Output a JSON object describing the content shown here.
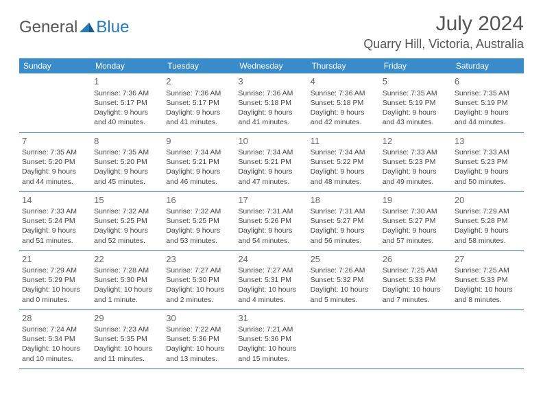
{
  "logo": {
    "text1": "General",
    "text2": "Blue"
  },
  "header": {
    "month_title": "July 2024",
    "location": "Quarry Hill, Victoria, Australia"
  },
  "colors": {
    "header_bg": "#3a8bc9",
    "header_text": "#ffffff",
    "divider": "#3a6a90",
    "body_text": "#444444",
    "logo_gray": "#555555",
    "logo_blue": "#2a7ab8"
  },
  "day_names": [
    "Sunday",
    "Monday",
    "Tuesday",
    "Wednesday",
    "Thursday",
    "Friday",
    "Saturday"
  ],
  "weeks": [
    [
      {
        "n": "",
        "sr": "",
        "ss": "",
        "dl": ""
      },
      {
        "n": "1",
        "sr": "Sunrise: 7:36 AM",
        "ss": "Sunset: 5:17 PM",
        "dl": "Daylight: 9 hours and 40 minutes."
      },
      {
        "n": "2",
        "sr": "Sunrise: 7:36 AM",
        "ss": "Sunset: 5:17 PM",
        "dl": "Daylight: 9 hours and 41 minutes."
      },
      {
        "n": "3",
        "sr": "Sunrise: 7:36 AM",
        "ss": "Sunset: 5:18 PM",
        "dl": "Daylight: 9 hours and 41 minutes."
      },
      {
        "n": "4",
        "sr": "Sunrise: 7:36 AM",
        "ss": "Sunset: 5:18 PM",
        "dl": "Daylight: 9 hours and 42 minutes."
      },
      {
        "n": "5",
        "sr": "Sunrise: 7:35 AM",
        "ss": "Sunset: 5:19 PM",
        "dl": "Daylight: 9 hours and 43 minutes."
      },
      {
        "n": "6",
        "sr": "Sunrise: 7:35 AM",
        "ss": "Sunset: 5:19 PM",
        "dl": "Daylight: 9 hours and 44 minutes."
      }
    ],
    [
      {
        "n": "7",
        "sr": "Sunrise: 7:35 AM",
        "ss": "Sunset: 5:20 PM",
        "dl": "Daylight: 9 hours and 44 minutes."
      },
      {
        "n": "8",
        "sr": "Sunrise: 7:35 AM",
        "ss": "Sunset: 5:20 PM",
        "dl": "Daylight: 9 hours and 45 minutes."
      },
      {
        "n": "9",
        "sr": "Sunrise: 7:34 AM",
        "ss": "Sunset: 5:21 PM",
        "dl": "Daylight: 9 hours and 46 minutes."
      },
      {
        "n": "10",
        "sr": "Sunrise: 7:34 AM",
        "ss": "Sunset: 5:21 PM",
        "dl": "Daylight: 9 hours and 47 minutes."
      },
      {
        "n": "11",
        "sr": "Sunrise: 7:34 AM",
        "ss": "Sunset: 5:22 PM",
        "dl": "Daylight: 9 hours and 48 minutes."
      },
      {
        "n": "12",
        "sr": "Sunrise: 7:33 AM",
        "ss": "Sunset: 5:23 PM",
        "dl": "Daylight: 9 hours and 49 minutes."
      },
      {
        "n": "13",
        "sr": "Sunrise: 7:33 AM",
        "ss": "Sunset: 5:23 PM",
        "dl": "Daylight: 9 hours and 50 minutes."
      }
    ],
    [
      {
        "n": "14",
        "sr": "Sunrise: 7:33 AM",
        "ss": "Sunset: 5:24 PM",
        "dl": "Daylight: 9 hours and 51 minutes."
      },
      {
        "n": "15",
        "sr": "Sunrise: 7:32 AM",
        "ss": "Sunset: 5:25 PM",
        "dl": "Daylight: 9 hours and 52 minutes."
      },
      {
        "n": "16",
        "sr": "Sunrise: 7:32 AM",
        "ss": "Sunset: 5:25 PM",
        "dl": "Daylight: 9 hours and 53 minutes."
      },
      {
        "n": "17",
        "sr": "Sunrise: 7:31 AM",
        "ss": "Sunset: 5:26 PM",
        "dl": "Daylight: 9 hours and 54 minutes."
      },
      {
        "n": "18",
        "sr": "Sunrise: 7:31 AM",
        "ss": "Sunset: 5:27 PM",
        "dl": "Daylight: 9 hours and 56 minutes."
      },
      {
        "n": "19",
        "sr": "Sunrise: 7:30 AM",
        "ss": "Sunset: 5:27 PM",
        "dl": "Daylight: 9 hours and 57 minutes."
      },
      {
        "n": "20",
        "sr": "Sunrise: 7:29 AM",
        "ss": "Sunset: 5:28 PM",
        "dl": "Daylight: 9 hours and 58 minutes."
      }
    ],
    [
      {
        "n": "21",
        "sr": "Sunrise: 7:29 AM",
        "ss": "Sunset: 5:29 PM",
        "dl": "Daylight: 10 hours and 0 minutes."
      },
      {
        "n": "22",
        "sr": "Sunrise: 7:28 AM",
        "ss": "Sunset: 5:30 PM",
        "dl": "Daylight: 10 hours and 1 minute."
      },
      {
        "n": "23",
        "sr": "Sunrise: 7:27 AM",
        "ss": "Sunset: 5:30 PM",
        "dl": "Daylight: 10 hours and 2 minutes."
      },
      {
        "n": "24",
        "sr": "Sunrise: 7:27 AM",
        "ss": "Sunset: 5:31 PM",
        "dl": "Daylight: 10 hours and 4 minutes."
      },
      {
        "n": "25",
        "sr": "Sunrise: 7:26 AM",
        "ss": "Sunset: 5:32 PM",
        "dl": "Daylight: 10 hours and 5 minutes."
      },
      {
        "n": "26",
        "sr": "Sunrise: 7:25 AM",
        "ss": "Sunset: 5:33 PM",
        "dl": "Daylight: 10 hours and 7 minutes."
      },
      {
        "n": "27",
        "sr": "Sunrise: 7:25 AM",
        "ss": "Sunset: 5:33 PM",
        "dl": "Daylight: 10 hours and 8 minutes."
      }
    ],
    [
      {
        "n": "28",
        "sr": "Sunrise: 7:24 AM",
        "ss": "Sunset: 5:34 PM",
        "dl": "Daylight: 10 hours and 10 minutes."
      },
      {
        "n": "29",
        "sr": "Sunrise: 7:23 AM",
        "ss": "Sunset: 5:35 PM",
        "dl": "Daylight: 10 hours and 11 minutes."
      },
      {
        "n": "30",
        "sr": "Sunrise: 7:22 AM",
        "ss": "Sunset: 5:36 PM",
        "dl": "Daylight: 10 hours and 13 minutes."
      },
      {
        "n": "31",
        "sr": "Sunrise: 7:21 AM",
        "ss": "Sunset: 5:36 PM",
        "dl": "Daylight: 10 hours and 15 minutes."
      },
      {
        "n": "",
        "sr": "",
        "ss": "",
        "dl": ""
      },
      {
        "n": "",
        "sr": "",
        "ss": "",
        "dl": ""
      },
      {
        "n": "",
        "sr": "",
        "ss": "",
        "dl": ""
      }
    ]
  ]
}
